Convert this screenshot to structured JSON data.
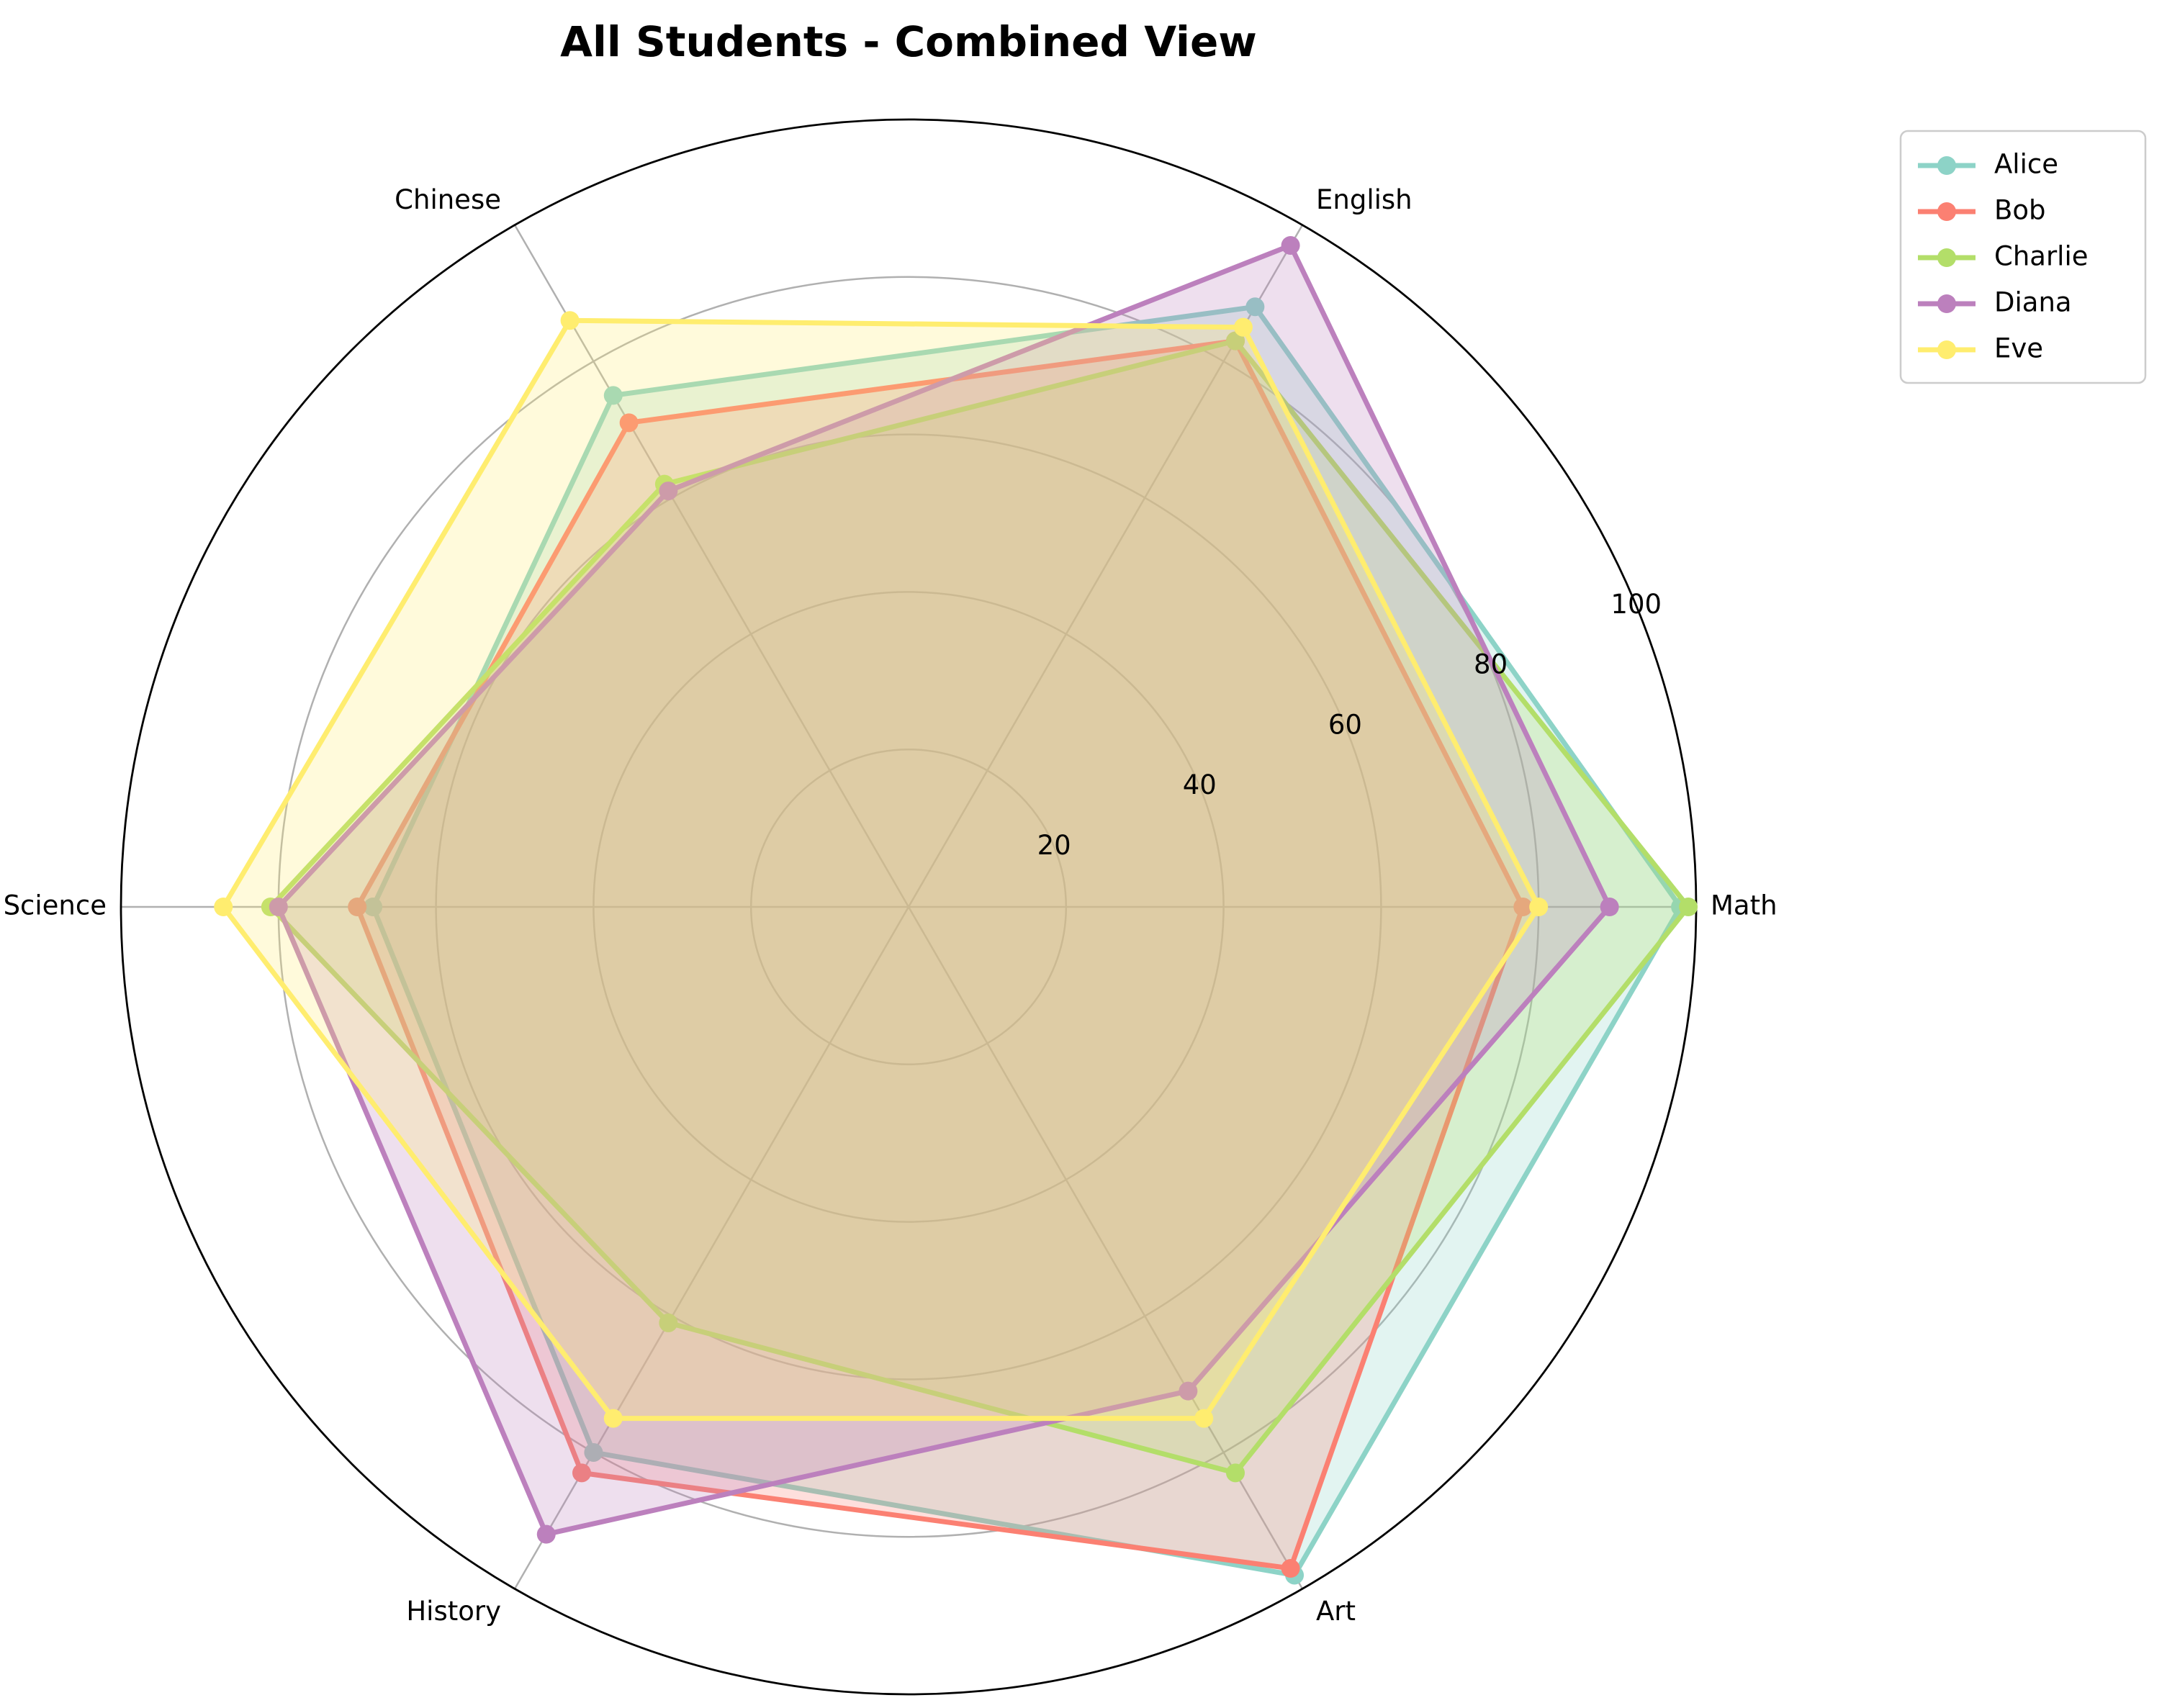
{
  "chart_data": {
    "type": "radar",
    "title": "All Students - Combined View",
    "axes": [
      "Math",
      "English",
      "Chinese",
      "Science",
      "History",
      "Art"
    ],
    "r_range": [
      0,
      100
    ],
    "r_ticks": [
      "20",
      "40",
      "60",
      "80",
      "100"
    ],
    "grid": true,
    "legend_position": "top-right, outside plot",
    "series": [
      {
        "name": "Alice",
        "color": "#8dd3c7",
        "values": [
          98,
          88,
          75,
          68,
          80,
          98
        ]
      },
      {
        "name": "Bob",
        "color": "#fb8072",
        "values": [
          78,
          83,
          71,
          70,
          83,
          97
        ]
      },
      {
        "name": "Charlie",
        "color": "#b3de69",
        "values": [
          99,
          83,
          62,
          81,
          61,
          83
        ]
      },
      {
        "name": "Diana",
        "color": "#bc80bd",
        "values": [
          89,
          97,
          61,
          80,
          92,
          71
        ]
      },
      {
        "name": "Eve",
        "color": "#ffed6f",
        "values": [
          80,
          85,
          86,
          87,
          75,
          75
        ]
      }
    ]
  }
}
